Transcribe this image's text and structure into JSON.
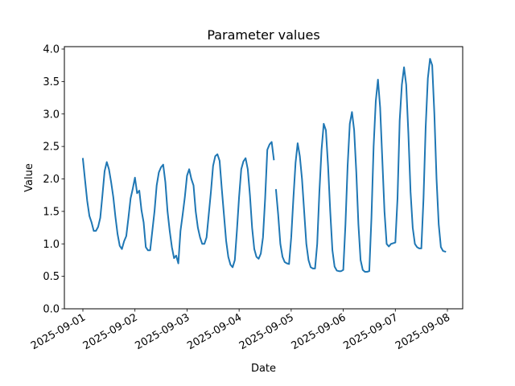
{
  "chart_data": {
    "type": "line",
    "title": "Parameter values",
    "xlabel": "Date",
    "ylabel": "Value",
    "ylim": [
      0,
      4.0
    ],
    "xlim": [
      "2025-08-31 15:30",
      "2025-09-08 07:00"
    ],
    "yticks": [
      "0.0",
      "0.5",
      "1.0",
      "1.5",
      "2.0",
      "2.5",
      "3.0",
      "3.5",
      "4.0"
    ],
    "xticks": [
      "2025-09-01",
      "2025-09-02",
      "2025-09-03",
      "2025-09-04",
      "2025-09-05",
      "2025-09-06",
      "2025-09-07",
      "2025-09-08"
    ],
    "grid": false,
    "color": "#1f77b4",
    "points": [
      [
        "2025-09-01 00:00",
        2.31
      ],
      [
        "2025-09-01 01:00",
        1.98
      ],
      [
        "2025-09-01 02:00",
        1.66
      ],
      [
        "2025-09-01 03:00",
        1.43
      ],
      [
        "2025-09-01 04:00",
        1.33
      ],
      [
        "2025-09-01 05:00",
        1.2
      ],
      [
        "2025-09-01 06:00",
        1.2
      ],
      [
        "2025-09-01 07:00",
        1.26
      ],
      [
        "2025-09-01 08:00",
        1.4
      ],
      [
        "2025-09-01 09:00",
        1.75
      ],
      [
        "2025-09-01 10:00",
        2.12
      ],
      [
        "2025-09-01 11:00",
        2.26
      ],
      [
        "2025-09-01 12:00",
        2.15
      ],
      [
        "2025-09-01 13:00",
        1.95
      ],
      [
        "2025-09-01 14:00",
        1.72
      ],
      [
        "2025-09-01 15:00",
        1.42
      ],
      [
        "2025-09-01 16:00",
        1.15
      ],
      [
        "2025-09-01 17:00",
        0.97
      ],
      [
        "2025-09-01 18:00",
        0.92
      ],
      [
        "2025-09-01 19:00",
        1.04
      ],
      [
        "2025-09-01 20:00",
        1.12
      ],
      [
        "2025-09-01 21:00",
        1.4
      ],
      [
        "2025-09-01 22:00",
        1.7
      ],
      [
        "2025-09-01 23:00",
        1.85
      ],
      [
        "2025-09-02 00:00",
        2.02
      ],
      [
        "2025-09-02 01:00",
        1.78
      ],
      [
        "2025-09-02 02:00",
        1.82
      ],
      [
        "2025-09-02 03:00",
        1.52
      ],
      [
        "2025-09-02 04:00",
        1.33
      ],
      [
        "2025-09-02 05:00",
        0.95
      ],
      [
        "2025-09-02 06:00",
        0.9
      ],
      [
        "2025-09-02 07:00",
        0.9
      ],
      [
        "2025-09-02 08:00",
        1.2
      ],
      [
        "2025-09-02 09:00",
        1.5
      ],
      [
        "2025-09-02 10:00",
        1.9
      ],
      [
        "2025-09-02 11:00",
        2.1
      ],
      [
        "2025-09-02 12:00",
        2.18
      ],
      [
        "2025-09-02 13:00",
        2.22
      ],
      [
        "2025-09-02 14:00",
        1.95
      ],
      [
        "2025-09-02 15:00",
        1.5
      ],
      [
        "2025-09-02 16:00",
        1.2
      ],
      [
        "2025-09-02 17:00",
        0.95
      ],
      [
        "2025-09-02 18:00",
        0.78
      ],
      [
        "2025-09-02 19:00",
        0.82
      ],
      [
        "2025-09-02 20:00",
        0.7
      ],
      [
        "2025-09-02 21:00",
        1.2
      ],
      [
        "2025-09-02 22:00",
        1.45
      ],
      [
        "2025-09-02 23:00",
        1.72
      ],
      [
        "2025-09-03 00:00",
        2.05
      ],
      [
        "2025-09-03 01:00",
        2.15
      ],
      [
        "2025-09-03 02:00",
        2.0
      ],
      [
        "2025-09-03 03:00",
        1.9
      ],
      [
        "2025-09-03 04:00",
        1.5
      ],
      [
        "2025-09-03 05:00",
        1.25
      ],
      [
        "2025-09-03 06:00",
        1.1
      ],
      [
        "2025-09-03 07:00",
        1.0
      ],
      [
        "2025-09-03 08:00",
        1.0
      ],
      [
        "2025-09-03 09:00",
        1.1
      ],
      [
        "2025-09-03 10:00",
        1.45
      ],
      [
        "2025-09-03 11:00",
        1.8
      ],
      [
        "2025-09-03 12:00",
        2.2
      ],
      [
        "2025-09-03 13:00",
        2.35
      ],
      [
        "2025-09-03 14:00",
        2.38
      ],
      [
        "2025-09-03 15:00",
        2.28
      ],
      [
        "2025-09-03 16:00",
        1.85
      ],
      [
        "2025-09-03 17:00",
        1.45
      ],
      [
        "2025-09-03 18:00",
        1.05
      ],
      [
        "2025-09-03 19:00",
        0.8
      ],
      [
        "2025-09-03 20:00",
        0.68
      ],
      [
        "2025-09-03 21:00",
        0.64
      ],
      [
        "2025-09-03 22:00",
        0.75
      ],
      [
        "2025-09-03 23:00",
        1.2
      ],
      [
        "2025-09-04 00:00",
        1.72
      ],
      [
        "2025-09-04 01:00",
        2.15
      ],
      [
        "2025-09-04 02:00",
        2.27
      ],
      [
        "2025-09-04 03:00",
        2.32
      ],
      [
        "2025-09-04 04:00",
        2.15
      ],
      [
        "2025-09-04 05:00",
        1.75
      ],
      [
        "2025-09-04 06:00",
        1.25
      ],
      [
        "2025-09-04 07:00",
        0.92
      ],
      [
        "2025-09-04 08:00",
        0.8
      ],
      [
        "2025-09-04 09:00",
        0.77
      ],
      [
        "2025-09-04 10:00",
        0.85
      ],
      [
        "2025-09-04 11:00",
        1.1
      ],
      [
        "2025-09-04 12:00",
        1.7
      ],
      [
        "2025-09-04 13:00",
        2.45
      ],
      [
        "2025-09-04 14:00",
        2.53
      ],
      [
        "2025-09-04 15:00",
        2.57
      ],
      [
        "2025-09-04 16:00",
        2.3
      ],
      [
        "2025-09-04 16:30",
        null
      ],
      [
        "2025-09-04 17:00",
        1.83
      ],
      [
        "2025-09-04 18:00",
        1.45
      ],
      [
        "2025-09-04 19:00",
        1.0
      ],
      [
        "2025-09-04 20:00",
        0.8
      ],
      [
        "2025-09-04 21:00",
        0.72
      ],
      [
        "2025-09-04 22:00",
        0.7
      ],
      [
        "2025-09-04 23:00",
        0.69
      ],
      [
        "2025-09-05 00:00",
        1.1
      ],
      [
        "2025-09-05 01:00",
        1.7
      ],
      [
        "2025-09-05 02:00",
        2.25
      ],
      [
        "2025-09-05 03:00",
        2.55
      ],
      [
        "2025-09-05 04:00",
        2.35
      ],
      [
        "2025-09-05 05:00",
        2.0
      ],
      [
        "2025-09-05 06:00",
        1.5
      ],
      [
        "2025-09-05 07:00",
        1.0
      ],
      [
        "2025-09-05 08:00",
        0.75
      ],
      [
        "2025-09-05 09:00",
        0.64
      ],
      [
        "2025-09-05 10:00",
        0.62
      ],
      [
        "2025-09-05 11:00",
        0.62
      ],
      [
        "2025-09-05 12:00",
        1.0
      ],
      [
        "2025-09-05 13:00",
        1.8
      ],
      [
        "2025-09-05 14:00",
        2.45
      ],
      [
        "2025-09-05 15:00",
        2.85
      ],
      [
        "2025-09-05 16:00",
        2.75
      ],
      [
        "2025-09-05 17:00",
        2.2
      ],
      [
        "2025-09-05 18:00",
        1.5
      ],
      [
        "2025-09-05 19:00",
        0.9
      ],
      [
        "2025-09-05 20:00",
        0.65
      ],
      [
        "2025-09-05 21:00",
        0.59
      ],
      [
        "2025-09-05 22:00",
        0.58
      ],
      [
        "2025-09-05 23:00",
        0.58
      ],
      [
        "2025-09-06 00:00",
        0.6
      ],
      [
        "2025-09-06 01:00",
        1.3
      ],
      [
        "2025-09-06 02:00",
        2.2
      ],
      [
        "2025-09-06 03:00",
        2.85
      ],
      [
        "2025-09-06 04:00",
        3.03
      ],
      [
        "2025-09-06 05:00",
        2.75
      ],
      [
        "2025-09-06 06:00",
        2.1
      ],
      [
        "2025-09-06 07:00",
        1.3
      ],
      [
        "2025-09-06 08:00",
        0.75
      ],
      [
        "2025-09-06 09:00",
        0.6
      ],
      [
        "2025-09-06 10:00",
        0.57
      ],
      [
        "2025-09-06 11:00",
        0.57
      ],
      [
        "2025-09-06 12:00",
        0.58
      ],
      [
        "2025-09-06 13:00",
        1.4
      ],
      [
        "2025-09-06 14:00",
        2.5
      ],
      [
        "2025-09-06 15:00",
        3.2
      ],
      [
        "2025-09-06 16:00",
        3.53
      ],
      [
        "2025-09-06 17:00",
        3.1
      ],
      [
        "2025-09-06 18:00",
        2.3
      ],
      [
        "2025-09-06 19:00",
        1.5
      ],
      [
        "2025-09-06 20:00",
        1.0
      ],
      [
        "2025-09-06 21:00",
        0.96
      ],
      [
        "2025-09-06 22:00",
        1.0
      ],
      [
        "2025-09-06 23:00",
        1.01
      ],
      [
        "2025-09-07 00:00",
        1.02
      ],
      [
        "2025-09-07 01:00",
        1.7
      ],
      [
        "2025-09-07 02:00",
        2.9
      ],
      [
        "2025-09-07 03:00",
        3.45
      ],
      [
        "2025-09-07 04:00",
        3.72
      ],
      [
        "2025-09-07 05:00",
        3.45
      ],
      [
        "2025-09-07 06:00",
        2.7
      ],
      [
        "2025-09-07 07:00",
        1.8
      ],
      [
        "2025-09-07 08:00",
        1.25
      ],
      [
        "2025-09-07 09:00",
        1.0
      ],
      [
        "2025-09-07 10:00",
        0.95
      ],
      [
        "2025-09-07 11:00",
        0.93
      ],
      [
        "2025-09-07 12:00",
        0.93
      ],
      [
        "2025-09-07 13:00",
        1.7
      ],
      [
        "2025-09-07 14:00",
        2.8
      ],
      [
        "2025-09-07 15:00",
        3.55
      ],
      [
        "2025-09-07 16:00",
        3.85
      ],
      [
        "2025-09-07 17:00",
        3.75
      ],
      [
        "2025-09-07 18:00",
        3.0
      ],
      [
        "2025-09-07 19:00",
        2.0
      ],
      [
        "2025-09-07 20:00",
        1.3
      ],
      [
        "2025-09-07 21:00",
        0.95
      ],
      [
        "2025-09-07 22:00",
        0.89
      ],
      [
        "2025-09-07 23:00",
        0.88
      ]
    ]
  }
}
